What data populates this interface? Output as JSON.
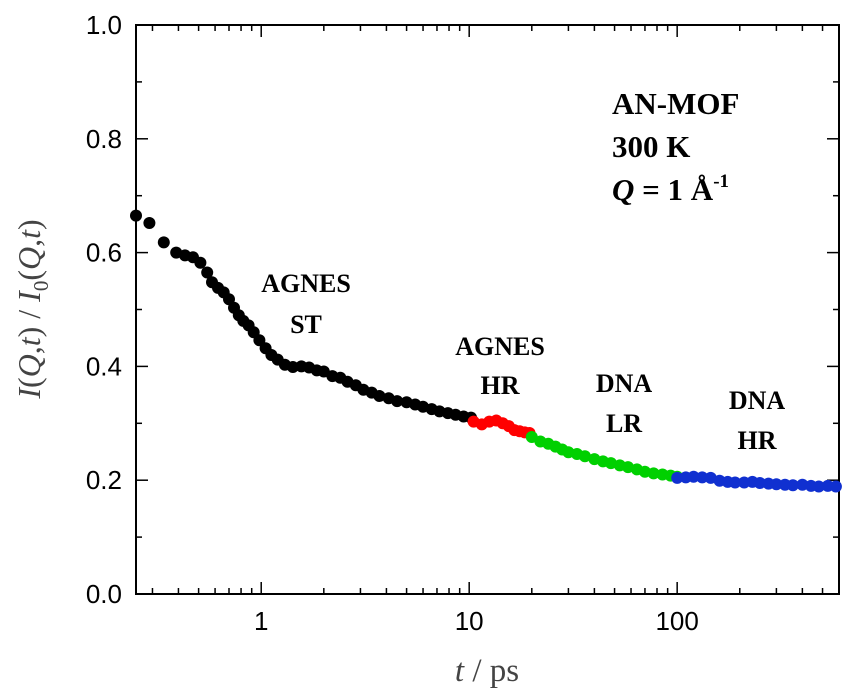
{
  "chart_data": {
    "type": "scatter",
    "x_scale": "log",
    "xlim": [
      0.25,
      600
    ],
    "ylim": [
      0.0,
      1.0
    ],
    "x_ticks": [
      {
        "value": 1,
        "label": "1"
      },
      {
        "value": 10,
        "label": "10"
      },
      {
        "value": 100,
        "label": "100"
      }
    ],
    "y_ticks": [
      {
        "value": 0.0,
        "label": "0.0"
      },
      {
        "value": 0.2,
        "label": "0.2"
      },
      {
        "value": 0.4,
        "label": "0.4"
      },
      {
        "value": 0.6,
        "label": "0.6"
      },
      {
        "value": 0.8,
        "label": "0.8"
      },
      {
        "value": 1.0,
        "label": "1.0"
      }
    ],
    "xlabel": {
      "var": "t",
      "rest": " / ps"
    },
    "ylabel": {
      "i1": "I",
      "m1": "(",
      "q1": "Q",
      "c1": ",",
      "t1": "t",
      "m2": ") / ",
      "i2": "I",
      "sub": "0",
      "m3": "(",
      "q2": "Q",
      "c2": ",",
      "t2": "t",
      "m4": ")"
    },
    "inset_text": {
      "line1": "AN-MOF",
      "line2": "300 K",
      "q_var": "Q",
      "q_eq": " = 1 Å",
      "q_exp": "-1"
    },
    "series": [
      {
        "name": "AGNES ST",
        "label_lines": [
          "AGNES",
          "ST"
        ],
        "color": "#000000",
        "x": [
          0.25,
          0.29,
          0.34,
          0.39,
          0.43,
          0.47,
          0.51,
          0.55,
          0.58,
          0.62,
          0.66,
          0.7,
          0.74,
          0.78,
          0.82,
          0.87,
          0.92,
          0.98,
          1.05,
          1.12,
          1.2,
          1.3,
          1.42,
          1.56,
          1.7,
          1.85,
          2.0,
          2.2,
          2.4,
          2.6,
          2.85,
          3.1,
          3.4,
          3.7,
          4.1,
          4.5,
          5.0,
          5.5,
          6.0,
          6.6,
          7.2,
          7.9,
          8.6,
          9.4,
          10.2
        ],
        "y": [
          0.665,
          0.652,
          0.618,
          0.6,
          0.595,
          0.592,
          0.582,
          0.565,
          0.548,
          0.538,
          0.53,
          0.518,
          0.503,
          0.49,
          0.48,
          0.472,
          0.46,
          0.446,
          0.432,
          0.42,
          0.412,
          0.403,
          0.399,
          0.4,
          0.398,
          0.393,
          0.391,
          0.383,
          0.38,
          0.373,
          0.367,
          0.359,
          0.354,
          0.348,
          0.344,
          0.339,
          0.337,
          0.333,
          0.329,
          0.325,
          0.321,
          0.318,
          0.315,
          0.312,
          0.31
        ]
      },
      {
        "name": "AGNES HR",
        "label_lines": [
          "AGNES",
          "HR"
        ],
        "color": "#ff0000",
        "x": [
          10.5,
          11.5,
          12.5,
          13.5,
          14.5,
          15.5,
          16.5,
          17.5,
          18.5,
          19.5
        ],
        "y": [
          0.303,
          0.298,
          0.303,
          0.305,
          0.3,
          0.295,
          0.288,
          0.286,
          0.284,
          0.283
        ]
      },
      {
        "name": "DNA LR",
        "label_lines": [
          "DNA",
          "LR"
        ],
        "color": "#00d000",
        "x": [
          20,
          22,
          24,
          26,
          28,
          30,
          33,
          36,
          40,
          44,
          48,
          53,
          58,
          64,
          70,
          77,
          85,
          93,
          100
        ],
        "y": [
          0.276,
          0.268,
          0.264,
          0.259,
          0.254,
          0.249,
          0.246,
          0.242,
          0.237,
          0.233,
          0.23,
          0.226,
          0.223,
          0.219,
          0.215,
          0.212,
          0.21,
          0.208,
          0.206
        ]
      },
      {
        "name": "DNA HR",
        "label_lines": [
          "DNA",
          "HR"
        ],
        "color": "#1030d0",
        "x": [
          100,
          110,
          120,
          132,
          145,
          160,
          175,
          190,
          210,
          230,
          250,
          275,
          300,
          330,
          360,
          400,
          440,
          480,
          530,
          580
        ],
        "y": [
          0.204,
          0.205,
          0.206,
          0.205,
          0.204,
          0.199,
          0.197,
          0.196,
          0.196,
          0.197,
          0.195,
          0.194,
          0.193,
          0.192,
          0.191,
          0.192,
          0.19,
          0.189,
          0.19,
          0.189
        ]
      }
    ]
  }
}
